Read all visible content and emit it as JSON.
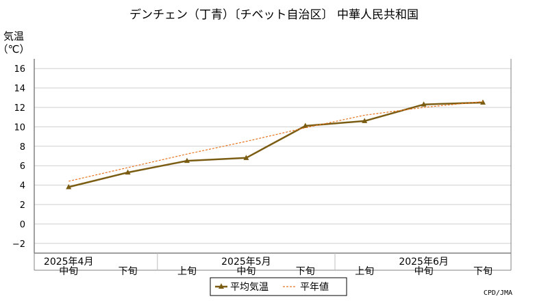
{
  "chart_data": {
    "type": "line",
    "title": "デンチェン（丁青）〔チベット自治区〕 中華人民共和国",
    "ylabel_line1": "気温",
    "ylabel_line2": "（℃）",
    "ylim": [
      -3,
      17
    ],
    "yticks": [
      16,
      14,
      12,
      10,
      8,
      6,
      4,
      2,
      0,
      -2
    ],
    "ytick_labels": [
      "16",
      "14",
      "12",
      "10",
      "8",
      "6",
      "4",
      "2",
      "0",
      "−2"
    ],
    "categories": [
      "中旬",
      "下旬",
      "上旬",
      "中旬",
      "下旬",
      "上旬",
      "中旬",
      "下旬"
    ],
    "month_labels": [
      {
        "label": "2025年4月",
        "index": 0
      },
      {
        "label": "2025年5月",
        "index": 3
      },
      {
        "label": "2025年6月",
        "index": 6
      }
    ],
    "series": [
      {
        "name": "平均気温",
        "values": [
          3.8,
          5.3,
          6.5,
          6.8,
          10.1,
          10.6,
          12.3,
          12.5
        ],
        "color": "#7a5c12",
        "style": "solid",
        "markers": true
      },
      {
        "name": "平年値",
        "values": [
          4.4,
          5.8,
          7.2,
          8.5,
          9.9,
          11.2,
          12.0,
          12.6
        ],
        "color": "#e8731e",
        "style": "dashed",
        "markers": false
      }
    ],
    "grid": true,
    "legend_position": "bottom",
    "credit": "CPD/JMA"
  },
  "colors": {
    "frame": "#808080",
    "grid": "#cfcfcf",
    "month_divider": "#bdbdbd"
  }
}
